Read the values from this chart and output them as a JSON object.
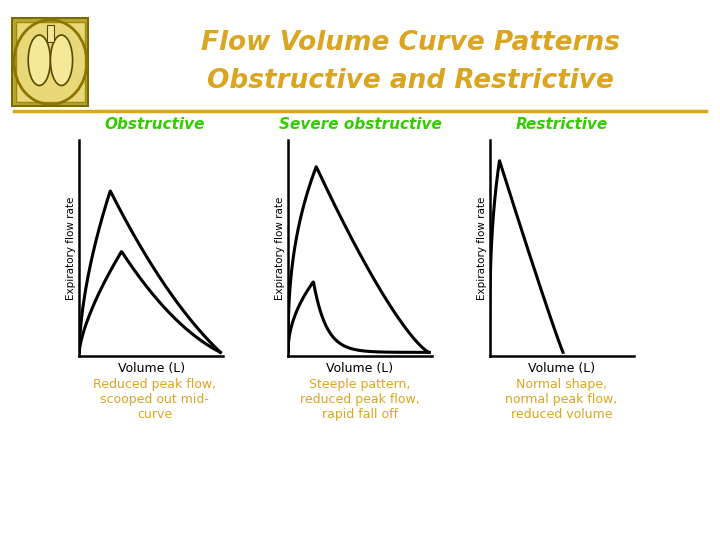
{
  "title_line1": "Flow Volume Curve Patterns",
  "title_line2": "Obstructive and Restrictive",
  "title_color": "#DAA520",
  "header_line_color": "#DAA520",
  "bg_color": "#FFFFFF",
  "panel_labels": [
    "Obstructive",
    "Severe obstructive",
    "Restrictive"
  ],
  "panel_label_color": "#33CC00",
  "xlabel": "Volume (L)",
  "ylabel": "Expiratory flow rate",
  "xlabel_color": "#000000",
  "ylabel_color": "#000000",
  "captions": [
    "Reduced peak flow,\nscooped out mid-\ncurve",
    "Steeple pattern,\nreduced peak flow,\nrapid fall off",
    "Normal shape,\nnormal peak flow,\nreduced volume"
  ],
  "caption_color": "#DAA520",
  "axes_color": "#000000",
  "curve_color": "#000000",
  "curve_lw": 2.2
}
